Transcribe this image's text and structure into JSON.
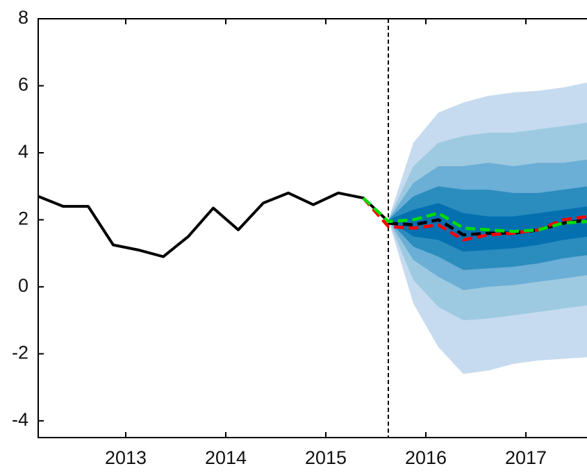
{
  "chart_data": {
    "type": "fan",
    "xlim": [
      2012.125,
      2017.625
    ],
    "ylim": [
      -4.5,
      8
    ],
    "xticks": [
      2013,
      2014,
      2015,
      2016,
      2017
    ],
    "yticks": [
      -4,
      -2,
      0,
      2,
      4,
      6,
      8
    ],
    "forecast_start": 2015.625,
    "forecast_x": [
      2015.625,
      2015.875,
      2016.125,
      2016.375,
      2016.625,
      2016.875,
      2017.125,
      2017.375,
      2017.625
    ],
    "bands": [
      {
        "color": "#c6dbef",
        "upper": [
          2.0,
          4.3,
          5.2,
          5.5,
          5.7,
          5.8,
          5.85,
          5.95,
          6.1
        ],
        "lower": [
          2.0,
          -0.5,
          -1.8,
          -2.6,
          -2.5,
          -2.3,
          -2.2,
          -2.15,
          -2.1
        ]
      },
      {
        "color": "#9ecae1",
        "upper": [
          2.0,
          3.6,
          4.3,
          4.5,
          4.6,
          4.6,
          4.7,
          4.8,
          4.9
        ],
        "lower": [
          2.0,
          0.2,
          -0.6,
          -1.0,
          -0.95,
          -0.85,
          -0.75,
          -0.65,
          -0.55
        ]
      },
      {
        "color": "#6baed6",
        "upper": [
          2.0,
          3.1,
          3.6,
          3.6,
          3.7,
          3.6,
          3.7,
          3.7,
          3.8
        ],
        "lower": [
          2.0,
          0.8,
          0.3,
          -0.1,
          0,
          0.05,
          0.15,
          0.25,
          0.35
        ]
      },
      {
        "color": "#2b8cbe",
        "upper": [
          2.0,
          2.7,
          3.0,
          2.9,
          2.9,
          2.8,
          2.8,
          2.9,
          3.0
        ],
        "lower": [
          2.0,
          1.2,
          0.9,
          0.5,
          0.55,
          0.6,
          0.7,
          0.85,
          0.95
        ]
      },
      {
        "color": "#0570b0",
        "upper": [
          2.0,
          2.3,
          2.5,
          2.2,
          2.1,
          2.1,
          2.2,
          2.3,
          2.4
        ],
        "lower": [
          2.0,
          1.5,
          1.4,
          1.05,
          1.1,
          1.15,
          1.25,
          1.4,
          1.5
        ]
      }
    ],
    "series": [
      {
        "color": "#000000",
        "dashed": false,
        "x": [
          2012.125,
          2012.375,
          2012.625,
          2012.875,
          2013.125,
          2013.375,
          2013.625,
          2013.875,
          2014.125,
          2014.375,
          2014.625,
          2014.875,
          2015.125,
          2015.375,
          2015.625
        ],
        "values": [
          2.7,
          2.4,
          2.4,
          1.25,
          1.1,
          0.9,
          1.5,
          2.35,
          1.7,
          2.5,
          2.8,
          2.45,
          2.8,
          2.65,
          1.95
        ]
      },
      {
        "color": "#000000",
        "dashed": true,
        "x": [
          2015.625,
          2015.875,
          2016.125,
          2016.375,
          2016.625,
          2016.875,
          2017.125,
          2017.375,
          2017.625
        ],
        "values": [
          1.9,
          1.85,
          2.0,
          1.55,
          1.6,
          1.6,
          1.7,
          1.9,
          2.0
        ]
      },
      {
        "color": "#ff0000",
        "dashed": true,
        "x": [
          2015.375,
          2015.625,
          2015.875,
          2016.125,
          2016.375,
          2016.625,
          2016.875,
          2017.125,
          2017.375,
          2017.625
        ],
        "values": [
          2.65,
          1.8,
          1.75,
          1.85,
          1.4,
          1.55,
          1.6,
          1.7,
          2.0,
          2.1
        ]
      },
      {
        "color": "#00dd00",
        "dashed": true,
        "x": [
          2015.375,
          2015.625,
          2015.875,
          2016.125,
          2016.375,
          2016.625,
          2016.875,
          2017.125,
          2017.375,
          2017.625
        ],
        "values": [
          2.65,
          1.95,
          2.0,
          2.2,
          1.75,
          1.7,
          1.65,
          1.7,
          1.9,
          1.95
        ]
      }
    ]
  }
}
